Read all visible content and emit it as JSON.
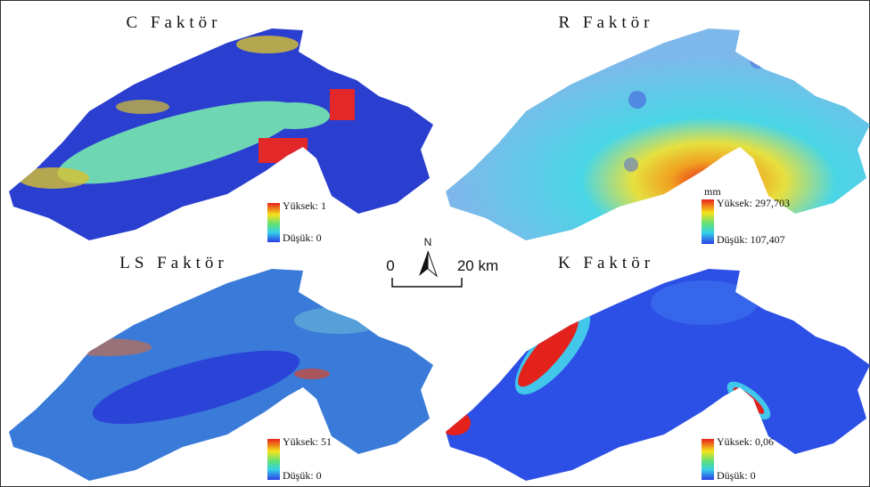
{
  "panels": [
    {
      "title": "C Faktör",
      "legend": {
        "high": "Yüksek: 1",
        "low": "Düşük: 0"
      }
    },
    {
      "title": "R Faktör",
      "legend": {
        "unit": "mm",
        "high": "Yüksek: 297,703",
        "low": "Düşük: 107,407"
      }
    },
    {
      "title": "LS Faktör",
      "legend": {
        "high": "Yüksek: 51",
        "low": "Düşük: 0"
      }
    },
    {
      "title": "K Faktör",
      "legend": {
        "high": "Yüksek: 0,06",
        "low": "Düşük: 0"
      }
    }
  ],
  "scale_bar": {
    "start": "0",
    "end": "20 km"
  },
  "north_arrow": "N"
}
